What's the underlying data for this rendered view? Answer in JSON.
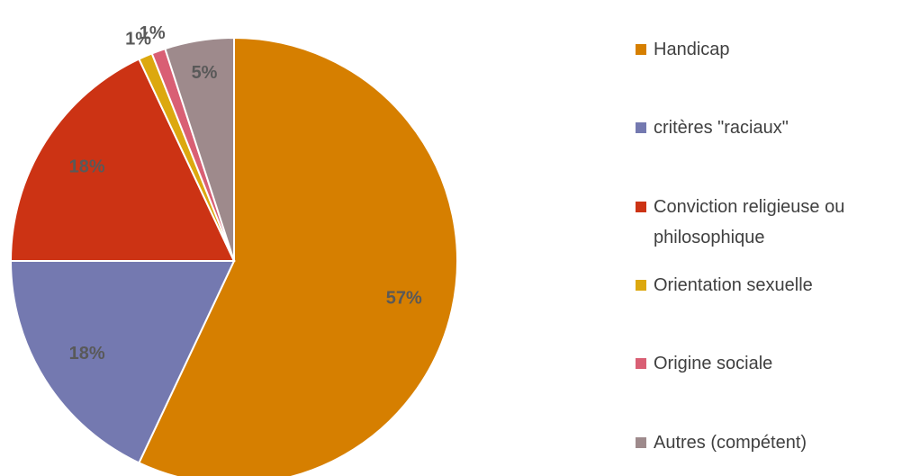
{
  "chart_data": {
    "type": "pie",
    "categories": [
      "Handicap",
      "critères \"raciaux\"",
      "Conviction religieuse ou philosophique",
      "Orientation sexuelle",
      "Origine sociale",
      "Autres (compétent)"
    ],
    "values": [
      57,
      18,
      18,
      1,
      1,
      5
    ],
    "value_labels": [
      "57%",
      "18%",
      "18%",
      "1%",
      "1%",
      "5%"
    ],
    "colors": [
      "#D67F00",
      "#7479B0",
      "#CC3314",
      "#DCA80F",
      "#D95F74",
      "#9E8A8C"
    ],
    "legend": "right"
  }
}
